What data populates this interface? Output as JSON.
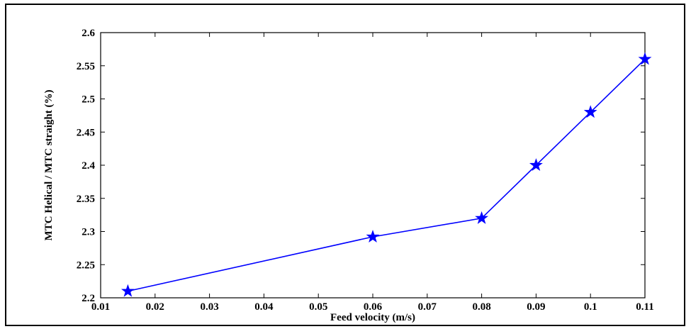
{
  "chart_data": {
    "type": "line",
    "title": "",
    "xlabel": "Feed velocity  (m/s)",
    "ylabel": "MTC Helical / MTC straight  (%)",
    "xlim": [
      0.01,
      0.11
    ],
    "ylim": [
      2.2,
      2.6
    ],
    "xticks": [
      "0.01",
      "0.02",
      "0.03",
      "0.04",
      "0.05",
      "0.06",
      "0.07",
      "0.08",
      "0.09",
      "0.1",
      "0.11"
    ],
    "yticks": [
      "2.2",
      "2.25",
      "2.3",
      "2.35",
      "2.4",
      "2.45",
      "2.5",
      "2.55",
      "2.6"
    ],
    "grid": false,
    "series": [
      {
        "marker": "star",
        "color": "#0000ff",
        "x": [
          0.015,
          0.06,
          0.08,
          0.09,
          0.1,
          0.11
        ],
        "y": [
          2.21,
          2.292,
          2.32,
          2.4,
          2.48,
          2.56
        ]
      }
    ]
  }
}
